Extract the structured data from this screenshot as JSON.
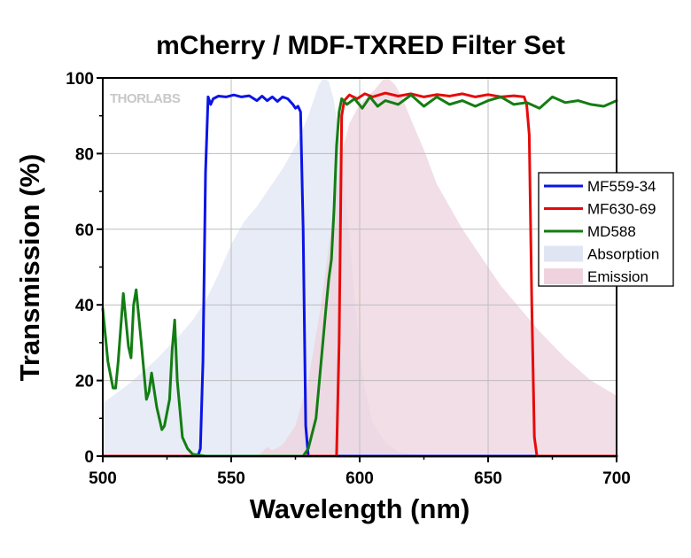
{
  "chart_data": {
    "type": "area",
    "title": "mCherry / MDF-TXRED Filter Set",
    "xlabel": "Wavelength (nm)",
    "ylabel": "Transmission (%)",
    "xlim": [
      500,
      700
    ],
    "ylim": [
      0,
      100
    ],
    "xticks": [
      500,
      550,
      600,
      650,
      700
    ],
    "yticks": [
      0,
      20,
      40,
      60,
      80,
      100
    ],
    "grid": true,
    "legend_position": "right",
    "watermark": "THORLABS",
    "series": [
      {
        "name": "Absorption",
        "kind": "area",
        "color": "#dfe5f3",
        "x": [
          500,
          510,
          520,
          530,
          535,
          540,
          545,
          550,
          555,
          560,
          565,
          570,
          575,
          580,
          582,
          584,
          586,
          588,
          590,
          592,
          594,
          596,
          598,
          600,
          602,
          605,
          610,
          615,
          620,
          625,
          630,
          640,
          650,
          700
        ],
        "y": [
          14,
          19,
          25,
          32,
          36,
          41,
          48,
          56,
          62,
          66,
          71,
          76,
          82,
          90,
          94,
          98,
          100,
          99,
          94,
          85,
          72,
          58,
          42,
          28,
          18,
          9,
          3.5,
          1.2,
          0.5,
          0.2,
          0.1,
          0,
          0,
          0
        ]
      },
      {
        "name": "Emission",
        "kind": "area",
        "color": "#eed3de",
        "x": [
          560,
          562,
          564,
          566,
          570,
          575,
          580,
          585,
          590,
          593,
          596,
          600,
          603,
          606,
          609,
          611,
          614,
          617,
          620,
          625,
          630,
          635,
          640,
          645,
          650,
          655,
          660,
          665,
          670,
          680,
          690,
          700
        ],
        "y": [
          0,
          1,
          2.5,
          1.5,
          3,
          8,
          20,
          40,
          66,
          80,
          88,
          93,
          95,
          97,
          99.5,
          100,
          98,
          94,
          89,
          81,
          72,
          66,
          60,
          55,
          50,
          45,
          41,
          37,
          33,
          26,
          20,
          16
        ]
      },
      {
        "name": "MF559-34",
        "kind": "line",
        "color": "#0a14e6",
        "x": [
          500,
          537,
          538,
          539,
          540,
          541,
          542,
          543,
          545,
          548,
          551,
          554,
          557,
          560,
          562,
          564,
          566,
          568,
          570,
          572,
          574,
          575,
          576,
          577,
          578,
          579,
          580,
          700
        ],
        "y": [
          0,
          0,
          2,
          25,
          75,
          95,
          93,
          94.5,
          95.2,
          95,
          95.5,
          95,
          95.3,
          94,
          95.2,
          94,
          95,
          93.8,
          95,
          94.5,
          93,
          92,
          92.5,
          91,
          60,
          8,
          0,
          0
        ]
      },
      {
        "name": "MF630-69",
        "kind": "line",
        "color": "#e60a0a",
        "x": [
          500,
          591,
          592,
          593,
          594,
          596,
          599,
          602,
          605,
          610,
          615,
          620,
          625,
          630,
          635,
          640,
          645,
          650,
          655,
          660,
          664,
          665,
          666,
          667,
          668,
          669,
          700
        ],
        "y": [
          0,
          0,
          30,
          90,
          94,
          95.5,
          94.5,
          95.8,
          95,
          96,
          95.2,
          95.8,
          95,
          95.6,
          95.2,
          95.8,
          95,
          95.6,
          95,
          95.3,
          95,
          93,
          85,
          40,
          5,
          0,
          0
        ]
      },
      {
        "name": "MD588",
        "kind": "line",
        "color": "#137d13",
        "x": [
          500,
          502,
          504,
          505,
          506,
          508,
          510,
          511,
          512,
          513,
          515,
          517,
          518,
          519,
          521,
          523,
          524,
          526,
          527,
          528,
          529,
          531,
          533,
          535,
          540,
          560,
          570,
          578,
          580,
          583,
          585,
          587,
          588,
          589,
          590,
          591,
          592,
          593,
          595,
          598,
          601,
          604,
          607,
          610,
          615,
          620,
          625,
          630,
          635,
          640,
          645,
          650,
          655,
          660,
          665,
          670,
          675,
          680,
          685,
          690,
          695,
          700
        ],
        "y": [
          39,
          25,
          18,
          18,
          25,
          43,
          29,
          26,
          40,
          44,
          30,
          15,
          17,
          22,
          13,
          7,
          8,
          15,
          28,
          36,
          20,
          5,
          2,
          0.5,
          0,
          0,
          0,
          0,
          2,
          10,
          25,
          40,
          47,
          52,
          65,
          82,
          91,
          94.5,
          93,
          94.5,
          92,
          95,
          92.5,
          94,
          93,
          95.5,
          92.5,
          95,
          93,
          94,
          92.5,
          94,
          95,
          93,
          93.5,
          92,
          95,
          93.5,
          94,
          93,
          92.5,
          94
        ]
      }
    ],
    "legend": {
      "entries": [
        {
          "name": "MF559-34",
          "kind": "line",
          "color": "#0a14e6"
        },
        {
          "name": "MF630-69",
          "kind": "line",
          "color": "#e60a0a"
        },
        {
          "name": "MD588",
          "kind": "line",
          "color": "#137d13"
        },
        {
          "name": "Absorption",
          "kind": "swatch",
          "color": "#dfe5f3"
        },
        {
          "name": "Emission",
          "kind": "swatch",
          "color": "#eed3de"
        }
      ]
    }
  }
}
